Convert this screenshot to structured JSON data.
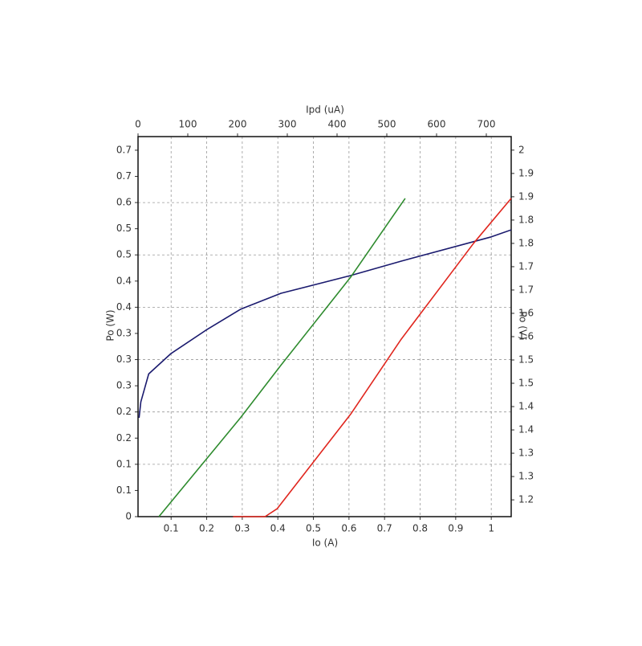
{
  "chart_data": {
    "type": "line",
    "xlabel": "Io (A)",
    "x2label": "Ipd (uA)",
    "ylabel": "Po (W)",
    "y2label": "Po (V)",
    "xlim": [
      0.007,
      1.056
    ],
    "xticks": [
      0.1,
      0.2,
      0.3,
      0.4,
      0.5,
      0.6,
      0.7,
      0.8,
      0.9,
      1
    ],
    "x2lim": [
      0,
      750
    ],
    "x2ticks": [
      0,
      100,
      200,
      300,
      400,
      500,
      600,
      700
    ],
    "ylim": [
      0,
      0.726
    ],
    "yticks": [
      0,
      {
        "value": 0.05,
        "label": "0.1"
      },
      0.1,
      {
        "value": 0.15,
        "label": "0.2"
      },
      0.2,
      {
        "value": 0.25,
        "label": "0.3"
      },
      0.3,
      {
        "value": 0.35,
        "label": "0.3"
      },
      0.4,
      {
        "value": 0.45,
        "label": "0.4"
      },
      0.5,
      {
        "value": 0.55,
        "label": "0.5"
      },
      0.6,
      {
        "value": 0.65,
        "label": "0.7"
      },
      0.7
    ],
    "y2lim": [
      1.214,
      2.029
    ],
    "y2ticks": [
      {
        "value": 1.25,
        "label": "1.2"
      },
      1.3,
      {
        "value": 1.35,
        "label": "1.3"
      },
      1.4,
      {
        "value": 1.45,
        "label": "1.4"
      },
      1.5,
      {
        "value": 1.55,
        "label": "1.5"
      },
      1.6,
      {
        "value": 1.65,
        "label": "1.6"
      },
      1.7,
      {
        "value": 1.75,
        "label": "1.7"
      },
      1.8,
      {
        "value": 1.85,
        "label": "1.8"
      },
      1.9,
      {
        "value": 1.95,
        "label": "1.9"
      },
      2
    ],
    "grid": true,
    "series": [
      {
        "color": "#1a1a6e",
        "axis": "y2",
        "x": [
          0.01,
          0.015,
          0.037,
          0.1,
          0.2,
          0.296,
          0.409,
          0.605,
          0.747,
          1.0,
          1.056
        ],
        "values": [
          1.426,
          1.46,
          1.52,
          1.564,
          1.615,
          1.659,
          1.693,
          1.731,
          1.762,
          1.814,
          1.829
        ]
      },
      {
        "color": "#2e8b2e",
        "xaxis": "x2",
        "x": [
          42,
          206,
          287,
          427,
          537
        ],
        "values": [
          0,
          0.189,
          0.289,
          0.457,
          0.608
        ]
      },
      {
        "color": "#e0261e",
        "x": [
          0.274,
          0.364,
          0.398,
          0.605,
          0.747,
          0.951,
          1.056
        ],
        "values": [
          0,
          0,
          0.015,
          0.196,
          0.339,
          0.523,
          0.608
        ]
      }
    ]
  }
}
